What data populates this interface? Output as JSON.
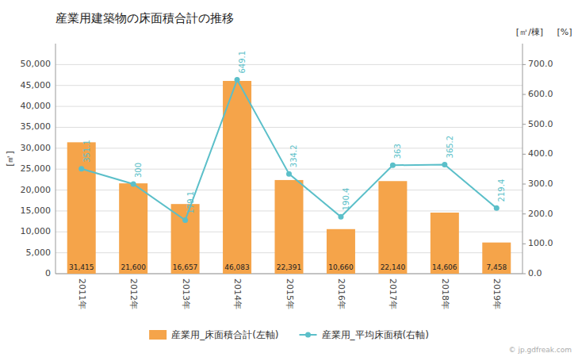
{
  "chart_data": {
    "type": "bar",
    "title": "産業用建築物の床面積合計の推移",
    "categories": [
      "2011年",
      "2012年",
      "2013年",
      "2014年",
      "2015年",
      "2016年",
      "2017年",
      "2018年",
      "2019年"
    ],
    "series": [
      {
        "name": "産業用_床面積合計(左軸)",
        "type": "bar",
        "color": "#f5a44a",
        "values": [
          31415,
          21600,
          16657,
          46083,
          22391,
          10660,
          22140,
          14606,
          7458
        ],
        "value_labels": [
          "31,415",
          "21,600",
          "16,657",
          "46,083",
          "22,391",
          "10,660",
          "22,140",
          "14,606",
          "7,458"
        ]
      },
      {
        "name": "産業用_平均床面積(右軸)",
        "type": "line",
        "axis": "y2",
        "color": "#5bbfc9",
        "marker": "circle",
        "values": [
          351.1,
          300,
          179.1,
          649.1,
          334.2,
          190.4,
          363,
          365.2,
          219.4
        ]
      }
    ],
    "ylabel": "[㎡]",
    "y2label": "[㎡/棟]",
    "annotations": [
      "[%]",
      "© jp.gdfreak.com"
    ],
    "ylim": [
      0,
      55000
    ],
    "yticks": [
      0,
      {
        "value": 5000,
        "label": "5,000"
      },
      {
        "value": 10000,
        "label": "10,000"
      },
      {
        "value": 15000,
        "label": "15,000"
      },
      {
        "value": 20000,
        "label": "20,000"
      },
      {
        "value": 25000,
        "label": "25,000"
      },
      {
        "value": 30000,
        "label": "30,000"
      },
      {
        "value": 35000,
        "label": "35,000"
      },
      {
        "value": 40000,
        "label": "40,000"
      },
      {
        "value": 45000,
        "label": "45,000"
      },
      {
        "value": 50000,
        "label": "50,000"
      }
    ],
    "y2lim": [
      0,
      770
    ],
    "y2ticks": [
      {
        "value": 0,
        "label": "0.0"
      },
      {
        "value": 100,
        "label": "100.0"
      },
      {
        "value": 200,
        "label": "200.0"
      },
      {
        "value": 300,
        "label": "300.0"
      },
      {
        "value": 400,
        "label": "400.0"
      },
      {
        "value": 500,
        "label": "500.0"
      },
      {
        "value": 600,
        "label": "600.0"
      },
      {
        "value": 700,
        "label": "700.0"
      }
    ],
    "grid": true,
    "data_labels": true,
    "legend": "bottom"
  }
}
